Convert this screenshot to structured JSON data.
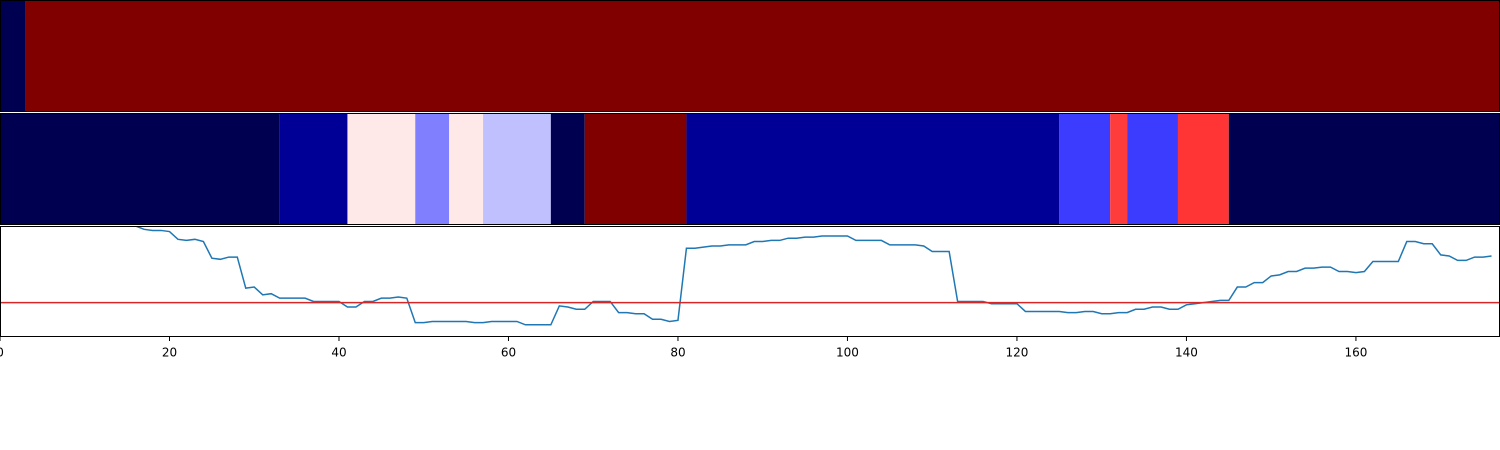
{
  "chart_data": [
    {
      "type": "heatmap",
      "xlim": [
        0,
        177
      ],
      "segments": [
        {
          "start": 0,
          "end": 3,
          "color": "#000050"
        },
        {
          "start": 3,
          "end": 177,
          "color": "#800000"
        }
      ]
    },
    {
      "type": "heatmap",
      "xlim": [
        0,
        177
      ],
      "segments": [
        {
          "start": 0,
          "end": 33,
          "color": "#000050"
        },
        {
          "start": 33,
          "end": 41,
          "color": "#000096"
        },
        {
          "start": 41,
          "end": 49,
          "color": "#ffe8e8"
        },
        {
          "start": 49,
          "end": 53,
          "color": "#8080ff"
        },
        {
          "start": 53,
          "end": 57,
          "color": "#ffe8e8"
        },
        {
          "start": 57,
          "end": 65,
          "color": "#c0c0ff"
        },
        {
          "start": 65,
          "end": 69,
          "color": "#000050"
        },
        {
          "start": 69,
          "end": 81,
          "color": "#800000"
        },
        {
          "start": 81,
          "end": 125,
          "color": "#000096"
        },
        {
          "start": 125,
          "end": 131,
          "color": "#3c3cff"
        },
        {
          "start": 131,
          "end": 133,
          "color": "#ff3c3c"
        },
        {
          "start": 133,
          "end": 139,
          "color": "#3c3cff"
        },
        {
          "start": 139,
          "end": 145,
          "color": "#ff3434"
        },
        {
          "start": 145,
          "end": 177,
          "color": "#000050"
        }
      ]
    },
    {
      "type": "line",
      "xlim": [
        0,
        177
      ],
      "ylim": [
        0,
        1
      ],
      "xticks": [
        0,
        20,
        40,
        60,
        80,
        100,
        120,
        140,
        160
      ],
      "hlines": [
        {
          "value": 0.31,
          "color": "#d62728"
        }
      ],
      "x": [
        16,
        17,
        18,
        19,
        20,
        21,
        22,
        23,
        24,
        25,
        26,
        27,
        28,
        29,
        30,
        31,
        32,
        33,
        34,
        35,
        36,
        37,
        38,
        39,
        40,
        41,
        42,
        43,
        44,
        45,
        46,
        47,
        48,
        49,
        50,
        51,
        52,
        53,
        54,
        55,
        56,
        57,
        58,
        59,
        60,
        61,
        62,
        63,
        64,
        65,
        66,
        67,
        68,
        69,
        70,
        71,
        72,
        73,
        74,
        75,
        76,
        77,
        78,
        79,
        80,
        81,
        82,
        83,
        84,
        85,
        86,
        87,
        88,
        89,
        90,
        91,
        92,
        93,
        94,
        95,
        96,
        97,
        98,
        99,
        100,
        101,
        102,
        103,
        104,
        105,
        106,
        107,
        108,
        109,
        110,
        111,
        112,
        113,
        114,
        115,
        116,
        117,
        118,
        119,
        120,
        121,
        122,
        123,
        124,
        125,
        126,
        127,
        128,
        129,
        130,
        131,
        132,
        133,
        134,
        135,
        136,
        137,
        138,
        139,
        140,
        141,
        142,
        143,
        144,
        145,
        146,
        147,
        148,
        149,
        150,
        151,
        152,
        153,
        154,
        155,
        156,
        157,
        158,
        159,
        160,
        161,
        162,
        163,
        164,
        165,
        166,
        167,
        168,
        169,
        170,
        171,
        172,
        173,
        174,
        175,
        176
      ],
      "series": [
        {
          "color": "#1f77b4",
          "values": [
            1.0,
            0.97,
            0.96,
            0.96,
            0.95,
            0.88,
            0.87,
            0.88,
            0.86,
            0.71,
            0.7,
            0.72,
            0.72,
            0.44,
            0.45,
            0.38,
            0.39,
            0.35,
            0.35,
            0.35,
            0.35,
            0.32,
            0.32,
            0.32,
            0.32,
            0.27,
            0.27,
            0.32,
            0.32,
            0.35,
            0.35,
            0.36,
            0.35,
            0.13,
            0.13,
            0.14,
            0.14,
            0.14,
            0.14,
            0.14,
            0.13,
            0.13,
            0.14,
            0.14,
            0.14,
            0.14,
            0.11,
            0.11,
            0.11,
            0.11,
            0.28,
            0.27,
            0.25,
            0.25,
            0.32,
            0.32,
            0.32,
            0.22,
            0.22,
            0.21,
            0.21,
            0.16,
            0.16,
            0.14,
            0.15,
            0.8,
            0.8,
            0.81,
            0.82,
            0.82,
            0.83,
            0.83,
            0.83,
            0.86,
            0.86,
            0.87,
            0.87,
            0.89,
            0.89,
            0.9,
            0.9,
            0.91,
            0.91,
            0.91,
            0.91,
            0.87,
            0.87,
            0.87,
            0.87,
            0.83,
            0.83,
            0.83,
            0.83,
            0.82,
            0.77,
            0.77,
            0.77,
            0.32,
            0.32,
            0.32,
            0.32,
            0.3,
            0.3,
            0.3,
            0.3,
            0.23,
            0.23,
            0.23,
            0.23,
            0.23,
            0.22,
            0.22,
            0.23,
            0.23,
            0.21,
            0.21,
            0.22,
            0.22,
            0.25,
            0.25,
            0.27,
            0.27,
            0.25,
            0.25,
            0.29,
            0.3,
            0.31,
            0.32,
            0.33,
            0.33,
            0.45,
            0.45,
            0.49,
            0.49,
            0.55,
            0.56,
            0.59,
            0.59,
            0.62,
            0.62,
            0.63,
            0.63,
            0.59,
            0.59,
            0.58,
            0.59,
            0.68,
            0.68,
            0.68,
            0.68,
            0.86,
            0.86,
            0.84,
            0.84,
            0.74,
            0.73,
            0.69,
            0.69,
            0.72,
            0.72,
            0.73
          ]
        }
      ]
    }
  ]
}
